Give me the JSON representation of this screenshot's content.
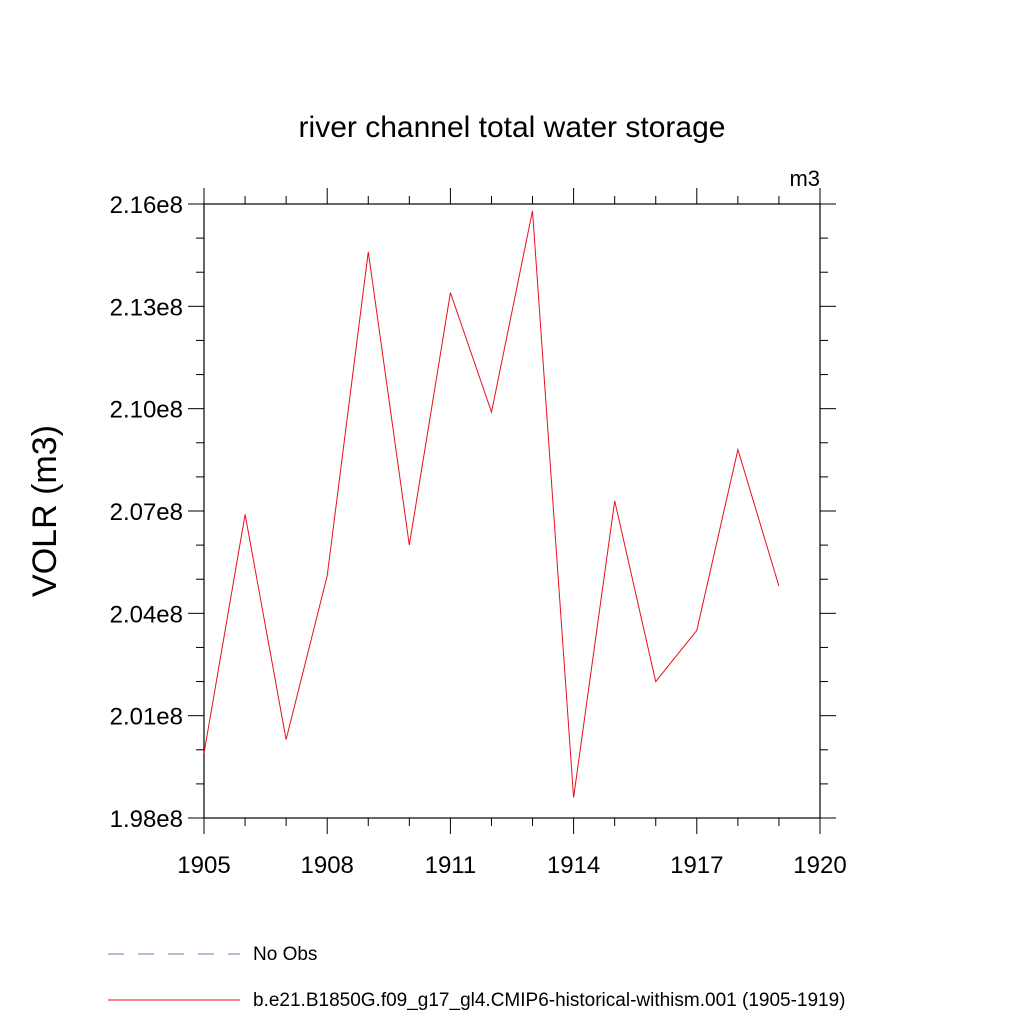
{
  "chart_data": {
    "type": "line",
    "title": "river channel total water storage",
    "units_label": "m3",
    "xlabel": "",
    "ylabel": "VOLR  (m3)",
    "xlim": [
      1905,
      1920
    ],
    "ylim": [
      198000000,
      216000000
    ],
    "x_ticks": [
      {
        "value": 1905,
        "label": "1905"
      },
      {
        "value": 1908,
        "label": "1908"
      },
      {
        "value": 1911,
        "label": "1911"
      },
      {
        "value": 1914,
        "label": "1914"
      },
      {
        "value": 1917,
        "label": "1917"
      },
      {
        "value": 1920,
        "label": "1920"
      }
    ],
    "y_ticks": [
      {
        "value": 198000000,
        "label": "1.98e8"
      },
      {
        "value": 201000000,
        "label": "2.01e8"
      },
      {
        "value": 204000000,
        "label": "2.04e8"
      },
      {
        "value": 207000000,
        "label": "2.07e8"
      },
      {
        "value": 210000000,
        "label": "2.10e8"
      },
      {
        "value": 213000000,
        "label": "2.13e8"
      },
      {
        "value": 216000000,
        "label": "2.16e8"
      }
    ],
    "grid": false,
    "legend_position": "bottom",
    "series": [
      {
        "name": "b.e21.B1850G.f09_g17_gl4.CMIP6-historical-withism.001 (1905-1919)",
        "color": "#e8101a",
        "dash": "solid",
        "x": [
          1905,
          1906,
          1907,
          1908,
          1909,
          1910,
          1911,
          1912,
          1913,
          1914,
          1915,
          1916,
          1917,
          1918,
          1919
        ],
        "y": [
          199900000,
          206900000,
          200300000,
          205100000,
          214600000,
          206000000,
          213400000,
          209900000,
          215800000,
          198600000,
          207300000,
          202000000,
          203500000,
          208800000,
          204800000
        ]
      }
    ],
    "legend": [
      {
        "label": "No Obs",
        "color": "#7b6fb0",
        "dash": "dashed"
      },
      {
        "label": "b.e21.B1850G.f09_g17_gl4.CMIP6-historical-withism.001 (1905-1919)",
        "color": "#e8101a",
        "dash": "solid"
      }
    ]
  }
}
